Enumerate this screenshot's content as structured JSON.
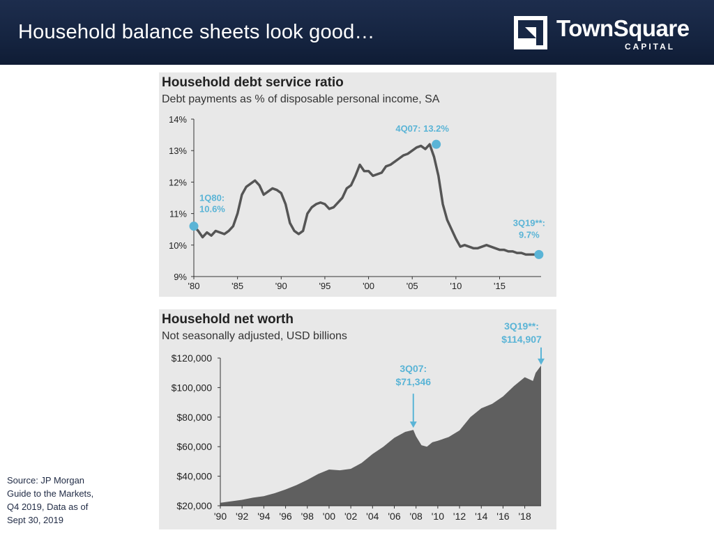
{
  "slide": {
    "title": "Household balance sheets look good…",
    "brand": {
      "name": "TownSquare",
      "sub": "CAPITAL",
      "icon": "square-fold-logo"
    },
    "source_lines": [
      "Source: JP Morgan",
      "Guide to the Markets,",
      "Q4 2019, Data as of",
      "Sept 30, 2019"
    ]
  },
  "colors": {
    "header_bg": "#172745",
    "panel_bg": "#e8e8e8",
    "line": "#555555",
    "area": "#5f5f5f",
    "highlight": "#5ab4d6"
  },
  "chart_data": [
    {
      "type": "line",
      "title": "Household debt service ratio",
      "subtitle": "Debt payments as % of disposable personal income, SA",
      "xlim": [
        1980,
        2019.75
      ],
      "ylim": [
        9,
        14
      ],
      "ytick_values": [
        9,
        10,
        11,
        12,
        13,
        14
      ],
      "ytick_labels": [
        "9%",
        "10%",
        "11%",
        "12%",
        "13%",
        "14%"
      ],
      "xtick_values": [
        1980,
        1985,
        1990,
        1995,
        2000,
        2005,
        2010,
        2015
      ],
      "xtick_labels": [
        "'80",
        "'85",
        "'90",
        "'95",
        "'00",
        "'05",
        "'10",
        "'15"
      ],
      "series": [
        {
          "x": [
            1980,
            1980.5,
            1981,
            1981.5,
            1982,
            1982.5,
            1983,
            1983.5,
            1984,
            1984.5,
            1985,
            1985.5,
            1986,
            1986.5,
            1987,
            1987.5,
            1988,
            1988.5,
            1989,
            1989.5,
            1990,
            1990.5,
            1991,
            1991.5,
            1992,
            1992.5,
            1993,
            1993.5,
            1994,
            1994.5,
            1995,
            1995.5,
            1996,
            1996.5,
            1997,
            1997.5,
            1998,
            1998.5,
            1999,
            1999.5,
            2000,
            2000.5,
            2001,
            2001.5,
            2002,
            2002.5,
            2003,
            2003.5,
            2004,
            2004.5,
            2005,
            2005.5,
            2006,
            2006.5,
            2007,
            2007.5,
            2008,
            2008.5,
            2009,
            2009.5,
            2010,
            2010.5,
            2011,
            2011.5,
            2012,
            2012.5,
            2013,
            2013.5,
            2014,
            2014.5,
            2015,
            2015.5,
            2016,
            2016.5,
            2017,
            2017.5,
            2018,
            2018.5,
            2019,
            2019.5
          ],
          "values": [
            10.6,
            10.45,
            10.25,
            10.4,
            10.3,
            10.45,
            10.4,
            10.35,
            10.45,
            10.6,
            11.0,
            11.6,
            11.85,
            11.95,
            12.05,
            11.9,
            11.6,
            11.7,
            11.8,
            11.75,
            11.65,
            11.3,
            10.7,
            10.45,
            10.35,
            10.45,
            11.0,
            11.2,
            11.3,
            11.35,
            11.3,
            11.15,
            11.2,
            11.35,
            11.5,
            11.8,
            11.9,
            12.2,
            12.55,
            12.35,
            12.35,
            12.2,
            12.25,
            12.3,
            12.5,
            12.55,
            12.65,
            12.75,
            12.85,
            12.9,
            13.0,
            13.1,
            13.15,
            13.05,
            13.2,
            12.8,
            12.2,
            11.3,
            10.8,
            10.5,
            10.2,
            9.95,
            10.0,
            9.95,
            9.9,
            9.9,
            9.95,
            10.0,
            9.95,
            9.9,
            9.85,
            9.85,
            9.8,
            9.8,
            9.75,
            9.75,
            9.7,
            9.7,
            9.7,
            9.7
          ]
        }
      ],
      "annotations": [
        {
          "x": 1980,
          "y": 10.6,
          "lines": [
            "1Q80:",
            "10.6%"
          ]
        },
        {
          "x": 2007.75,
          "y": 13.2,
          "lines": [
            "4Q07: 13.2%"
          ]
        },
        {
          "x": 2019.5,
          "y": 9.7,
          "lines": [
            "3Q19**:",
            "9.7%"
          ]
        }
      ]
    },
    {
      "type": "area",
      "title": "Household net worth",
      "subtitle": "Not seasonally adjusted, USD billions",
      "xlim": [
        1990,
        2019.5
      ],
      "ylim": [
        20000,
        120000
      ],
      "ytick_values": [
        20000,
        40000,
        60000,
        80000,
        100000,
        120000
      ],
      "ytick_labels": [
        "$20,000",
        "$40,000",
        "$60,000",
        "$80,000",
        "$100,000",
        "$120,000"
      ],
      "xtick_values": [
        1990,
        1992,
        1994,
        1996,
        1998,
        2000,
        2002,
        2004,
        2006,
        2008,
        2010,
        2012,
        2014,
        2016,
        2018
      ],
      "xtick_labels": [
        "'90",
        "'92",
        "'94",
        "'96",
        "'98",
        "'00",
        "'02",
        "'04",
        "'06",
        "'08",
        "'10",
        "'12",
        "'14",
        "'16",
        "'18"
      ],
      "series": [
        {
          "x": [
            1990,
            1991,
            1992,
            1993,
            1994,
            1995,
            1996,
            1997,
            1998,
            1999,
            2000,
            2001,
            2002,
            2003,
            2004,
            2005,
            2006,
            2007,
            2007.75,
            2008,
            2008.5,
            2009,
            2009.5,
            2010,
            2011,
            2012,
            2013,
            2014,
            2015,
            2016,
            2017,
            2018,
            2018.75,
            2019,
            2019.5
          ],
          "values": [
            22000,
            23000,
            24000,
            25500,
            26500,
            28500,
            31000,
            34000,
            37500,
            41500,
            44500,
            44000,
            45000,
            49000,
            55000,
            60000,
            66000,
            70000,
            71346,
            67000,
            61000,
            60000,
            63000,
            64000,
            66500,
            71000,
            80000,
            86000,
            89000,
            94000,
            101000,
            107000,
            104500,
            110000,
            114907
          ]
        }
      ],
      "annotations": [
        {
          "x": 2007.75,
          "y": 71346,
          "lines": [
            "3Q07:",
            "$71,346"
          ]
        },
        {
          "x": 2019.5,
          "y": 114907,
          "lines": [
            "3Q19**:",
            "$114,907"
          ]
        }
      ]
    }
  ]
}
